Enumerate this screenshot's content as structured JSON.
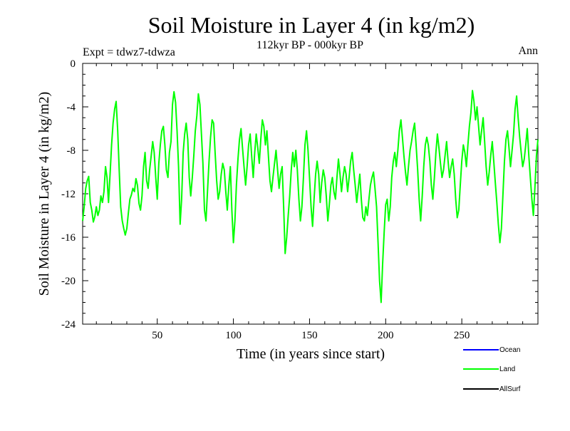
{
  "chart_data": {
    "type": "line",
    "title": "Soil Moisture in Layer 4 (in kg/m2)",
    "subtitle": "112kyr BP - 000kyr BP",
    "experiment_label": "Expt = tdwz7-tdwza",
    "season_label": "Ann",
    "xlabel": "Time (in years since start)",
    "ylabel": "Soil Moisture in Layer 4 (in kg/m2)",
    "xlim": [
      1,
      300
    ],
    "ylim": [
      -24,
      0
    ],
    "x_ticks": [
      50,
      100,
      150,
      200,
      250
    ],
    "y_ticks": [
      0,
      -4,
      -8,
      -12,
      -16,
      -20,
      -24
    ],
    "legend": [
      {
        "name": "Ocean",
        "color": "#0000ff"
      },
      {
        "name": "Land",
        "color": "#00ff00"
      },
      {
        "name": "AllSurf",
        "color": "#000000"
      }
    ],
    "series": [
      {
        "name": "Land",
        "color": "#00ff00",
        "x_start": 1,
        "x_step": 1,
        "values": [
          -14.5,
          -13.2,
          -11.5,
          -10.8,
          -10.4,
          -12.8,
          -13.5,
          -14.6,
          -14.1,
          -13.2,
          -14.0,
          -13.5,
          -12.2,
          -12.8,
          -11.8,
          -9.5,
          -10.5,
          -12.8,
          -10.2,
          -7.5,
          -5.5,
          -4.2,
          -3.5,
          -6.2,
          -9.8,
          -13.2,
          -14.5,
          -15.2,
          -15.8,
          -15.2,
          -13.8,
          -12.5,
          -12.1,
          -11.5,
          -11.8,
          -10.6,
          -11.2,
          -12.9,
          -13.5,
          -12.2,
          -9.5,
          -8.2,
          -10.8,
          -11.5,
          -9.8,
          -8.5,
          -7.2,
          -8.2,
          -10.5,
          -12.5,
          -9.2,
          -7.5,
          -6.2,
          -5.8,
          -7.5,
          -9.8,
          -10.5,
          -8.2,
          -7.2,
          -3.8,
          -2.6,
          -3.6,
          -6.2,
          -9.5,
          -14.8,
          -12.5,
          -8.2,
          -6.5,
          -5.5,
          -7.0,
          -10.5,
          -12.2,
          -10.5,
          -8.5,
          -6.2,
          -4.8,
          -2.8,
          -3.8,
          -6.5,
          -9.2,
          -13.5,
          -14.5,
          -11.8,
          -9.0,
          -6.8,
          -5.2,
          -5.5,
          -8.2,
          -10.8,
          -12.5,
          -11.8,
          -10.2,
          -9.2,
          -9.8,
          -11.8,
          -13.5,
          -11.2,
          -9.5,
          -13.5,
          -16.5,
          -14.5,
          -11.2,
          -8.8,
          -7.0,
          -6.0,
          -7.8,
          -9.5,
          -11.2,
          -9.5,
          -7.5,
          -6.5,
          -8.5,
          -10.5,
          -8.2,
          -6.5,
          -7.8,
          -9.2,
          -7.0,
          -5.2,
          -5.8,
          -7.5,
          -6.2,
          -8.5,
          -10.8,
          -11.8,
          -10.5,
          -9.2,
          -8.0,
          -9.8,
          -11.5,
          -10.2,
          -9.5,
          -13.2,
          -17.5,
          -16.0,
          -14.0,
          -12.2,
          -9.8,
          -8.2,
          -9.5,
          -8.0,
          -9.8,
          -12.5,
          -14.5,
          -13.2,
          -10.5,
          -7.5,
          -6.2,
          -8.0,
          -10.5,
          -13.2,
          -15.0,
          -12.5,
          -10.2,
          -9.0,
          -10.2,
          -12.8,
          -11.0,
          -9.8,
          -10.5,
          -12.2,
          -14.5,
          -13.0,
          -11.2,
          -10.5,
          -11.8,
          -12.5,
          -10.5,
          -8.8,
          -10.2,
          -11.8,
          -10.5,
          -9.5,
          -10.2,
          -11.8,
          -10.5,
          -9.0,
          -8.2,
          -9.8,
          -11.2,
          -12.8,
          -11.5,
          -10.2,
          -12.5,
          -14.2,
          -14.5,
          -13.2,
          -14.0,
          -12.5,
          -11.2,
          -10.5,
          -10.0,
          -11.5,
          -13.2,
          -16.5,
          -20.0,
          -22.0,
          -18.5,
          -15.5,
          -13.0,
          -12.5,
          -14.5,
          -13.2,
          -10.5,
          -9.0,
          -8.2,
          -9.5,
          -8.0,
          -6.2,
          -5.2,
          -6.8,
          -8.5,
          -10.0,
          -11.2,
          -9.5,
          -8.0,
          -7.2,
          -6.2,
          -5.5,
          -7.5,
          -9.8,
          -12.5,
          -14.5,
          -12.2,
          -9.5,
          -7.5,
          -6.8,
          -7.5,
          -9.0,
          -11.2,
          -12.5,
          -10.5,
          -8.2,
          -6.5,
          -7.8,
          -9.2,
          -10.5,
          -9.8,
          -8.5,
          -7.2,
          -9.0,
          -10.5,
          -9.5,
          -8.8,
          -10.2,
          -12.5,
          -14.2,
          -13.5,
          -11.2,
          -9.0,
          -7.5,
          -8.2,
          -9.5,
          -7.5,
          -5.8,
          -4.5,
          -2.5,
          -3.5,
          -5.2,
          -4.0,
          -5.8,
          -7.5,
          -6.2,
          -5.0,
          -7.2,
          -9.5,
          -11.2,
          -10.0,
          -8.5,
          -7.2,
          -9.0,
          -11.0,
          -12.8,
          -14.8,
          -16.5,
          -15.2,
          -12.2,
          -9.0,
          -7.0,
          -6.2,
          -7.8,
          -9.5,
          -8.0,
          -6.5,
          -4.2,
          -3.0,
          -5.0,
          -6.8,
          -8.2,
          -9.5,
          -8.8,
          -7.5,
          -6.0,
          -8.5,
          -10.5,
          -12.5,
          -14.0,
          -11.5,
          -8.5,
          -7.0
        ]
      }
    ]
  }
}
